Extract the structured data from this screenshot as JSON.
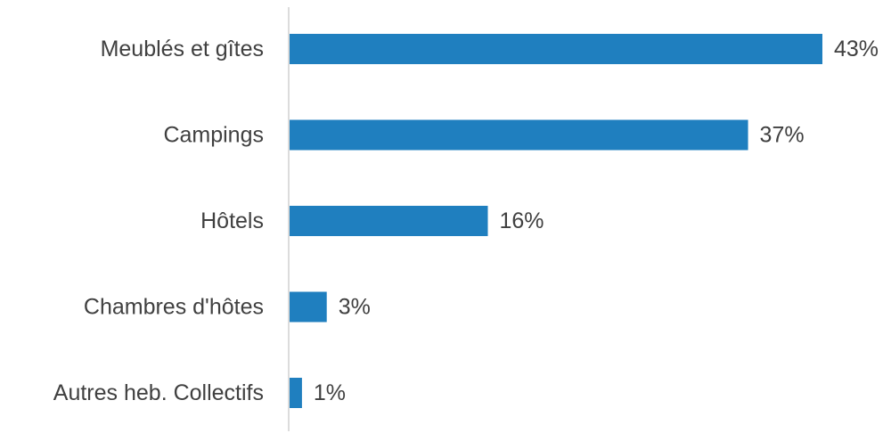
{
  "chart_data": {
    "type": "bar",
    "orientation": "horizontal",
    "categories": [
      "Meublés et gîtes",
      "Campings",
      "Hôtels",
      "Chambres d'hôtes",
      "Autres heb. Collectifs"
    ],
    "values": [
      43,
      37,
      16,
      3,
      1
    ],
    "value_labels": [
      "43%",
      "37%",
      "16%",
      "3%",
      "1%"
    ],
    "unit": "%",
    "xlim": [
      0,
      43
    ],
    "grid": false,
    "legend": "none",
    "title": "",
    "xlabel": "",
    "ylabel": "",
    "colors": {
      "bar": "#1f7fbf",
      "axis": "#d0d0d0",
      "text": "#404040"
    }
  }
}
